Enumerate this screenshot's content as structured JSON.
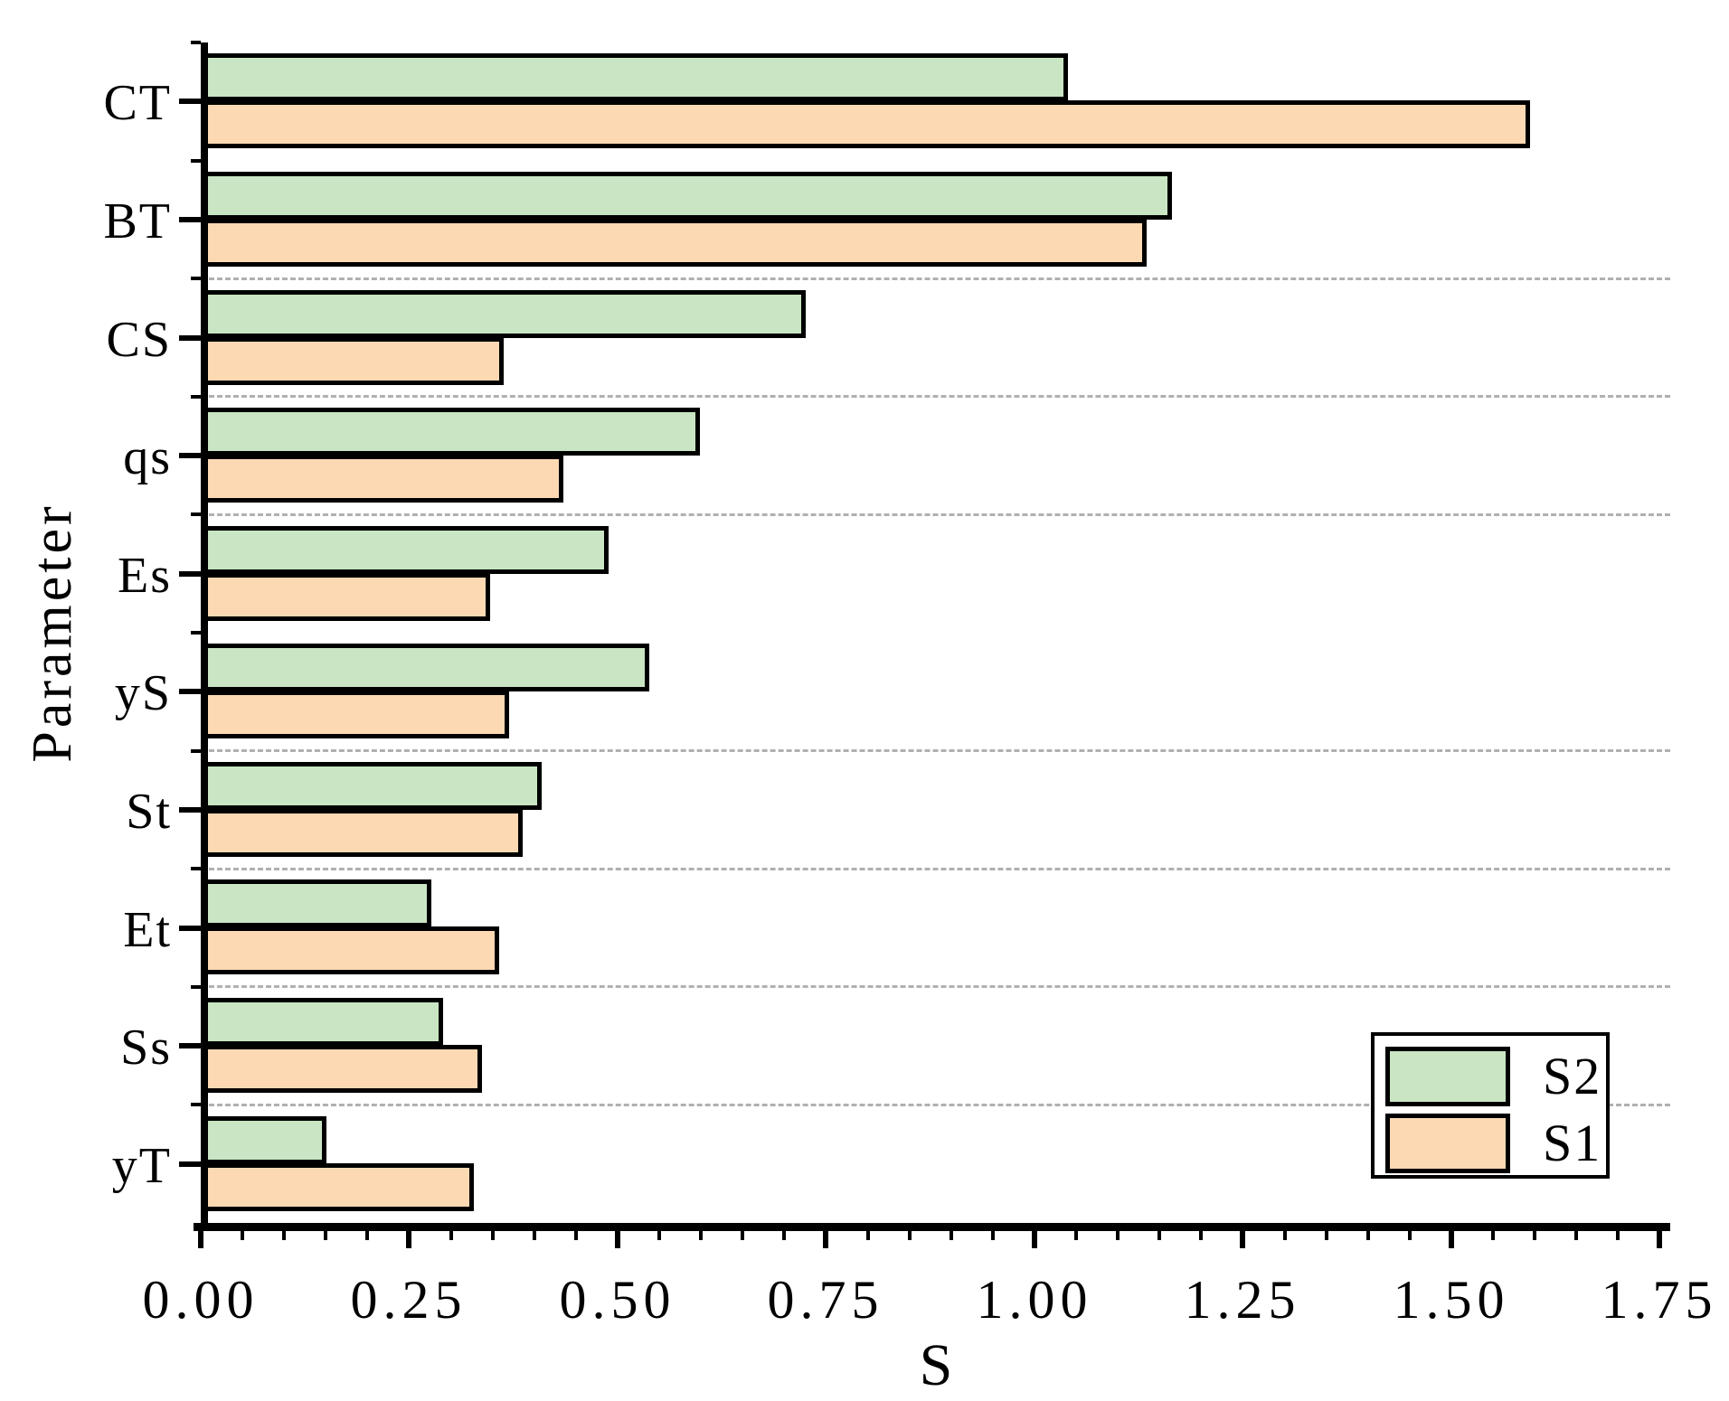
{
  "figure": {
    "background": "#ffffff"
  },
  "chart_data": {
    "type": "bar",
    "orientation": "horizontal",
    "title": "",
    "xlabel": "S",
    "ylabel": "Parameter",
    "categories": [
      "CT",
      "BT",
      "CS",
      "qs",
      "Es",
      "yS",
      "St",
      "Et",
      "Ss",
      "yT"
    ],
    "series": [
      {
        "name": "S2",
        "color": "#c9e5c3",
        "edge_color": "#000000",
        "values": [
          1.04,
          1.165,
          0.726,
          0.599,
          0.489,
          0.538,
          0.409,
          0.277,
          0.291,
          0.151
        ]
      },
      {
        "name": "S1",
        "color": "#fdd9b3",
        "edge_color": "#000000",
        "values": [
          1.594,
          1.135,
          0.363,
          0.435,
          0.347,
          0.37,
          0.386,
          0.358,
          0.337,
          0.328
        ]
      }
    ],
    "xlim": [
      0,
      1.7625
    ],
    "x_tick_labels": [
      "0.00",
      "0.25",
      "0.50",
      "0.75",
      "1.00",
      "1.25",
      "1.50",
      "1.75"
    ],
    "x_major_tick_step": 0.25,
    "x_minor_tick_step": 0.05,
    "grid": "dashed horizontal between category groups",
    "gridline_boundaries": [
      2,
      3,
      4,
      6,
      7,
      8,
      9
    ],
    "gridline_color": "#b0b0b0",
    "legend": {
      "position": "lower right",
      "entries": [
        "S2",
        "S1"
      ]
    }
  }
}
